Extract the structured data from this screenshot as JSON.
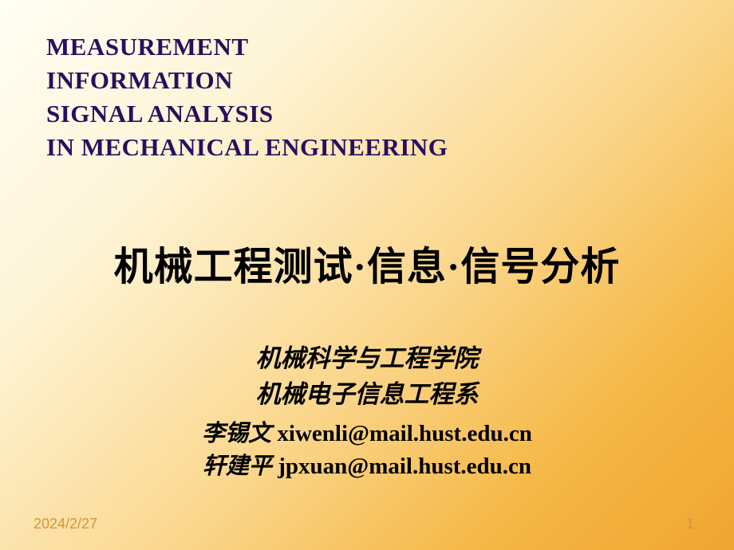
{
  "english_title": {
    "line1": "MEASUREMENT",
    "line2": "INFORMATION",
    "line3": "SIGNAL  ANALYSIS",
    "line4": "IN  MECHANICAL  ENGINEERING"
  },
  "chinese_title": "机械工程测试·信息·信号分析",
  "school": {
    "line1": "机械科学与工程学院",
    "line2": "机械电子信息工程系"
  },
  "contacts": {
    "person1_name": "李锡文",
    "person1_email": "xiwenli@mail.hust.edu.cn",
    "person2_name": "轩建平",
    "person2_email": "jpxuan@mail.hust.edu.cn"
  },
  "date": "2024/2/27",
  "page": "1",
  "styling": {
    "background_gradient_start": "#fffef5",
    "background_gradient_mid1": "#fef5d8",
    "background_gradient_mid2": "#fbd890",
    "background_gradient_end": "#f0a530",
    "english_title_color": "#2a0e5e",
    "english_title_fontsize": 31,
    "chinese_title_color": "#000000",
    "chinese_title_fontsize": 49,
    "school_fontsize": 31,
    "contact_fontsize": 29,
    "footer_color": "#d4943a",
    "footer_fontsize": 18
  }
}
